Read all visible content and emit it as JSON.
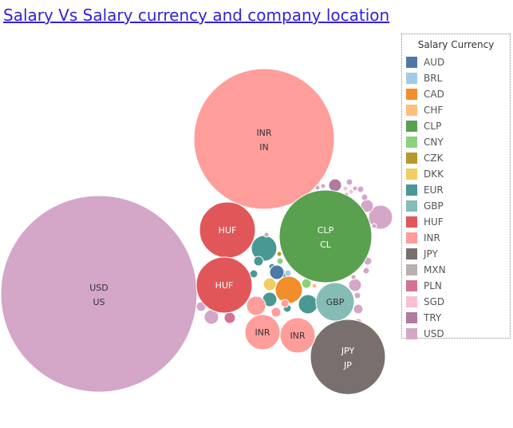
{
  "header": {
    "title": "Salary Vs Salary currency and company location"
  },
  "legend": {
    "title": "Salary Currency",
    "items": [
      {
        "label": "AUD",
        "color": "#4e79a7"
      },
      {
        "label": "BRL",
        "color": "#a0cbe8"
      },
      {
        "label": "CAD",
        "color": "#f28e2b"
      },
      {
        "label": "CHF",
        "color": "#ffbe7d"
      },
      {
        "label": "CLP",
        "color": "#59a14f"
      },
      {
        "label": "CNY",
        "color": "#8cd17d"
      },
      {
        "label": "CZK",
        "color": "#b6992d"
      },
      {
        "label": "DKK",
        "color": "#f1ce63"
      },
      {
        "label": "EUR",
        "color": "#499894"
      },
      {
        "label": "GBP",
        "color": "#86bcb6"
      },
      {
        "label": "HUF",
        "color": "#e15759"
      },
      {
        "label": "INR",
        "color": "#ff9d9a"
      },
      {
        "label": "JPY",
        "color": "#79706e"
      },
      {
        "label": "MXN",
        "color": "#bab0ac"
      },
      {
        "label": "PLN",
        "color": "#d37295"
      },
      {
        "label": "SGD",
        "color": "#fabfd2"
      },
      {
        "label": "TRY",
        "color": "#b07aa1"
      },
      {
        "label": "USD",
        "color": "#d4a6c8"
      }
    ]
  },
  "chart_data": {
    "type": "bubble",
    "title": "Salary Vs Salary currency and company location",
    "color_by": "Salary Currency",
    "labeled_bubbles": [
      {
        "currency": "USD",
        "location": "US"
      },
      {
        "currency": "INR",
        "location": "IN"
      },
      {
        "currency": "CLP",
        "location": "CL"
      },
      {
        "currency": "JPY",
        "location": "JP"
      },
      {
        "currency": "HUF",
        "location": ""
      },
      {
        "currency": "HUF",
        "location": ""
      },
      {
        "currency": "GBP",
        "location": ""
      },
      {
        "currency": "INR",
        "location": ""
      },
      {
        "currency": "INR",
        "location": ""
      }
    ],
    "unlabeled_bubbles": [
      {
        "currency": "EUR"
      },
      {
        "currency": "EUR"
      },
      {
        "currency": "EUR"
      },
      {
        "currency": "EUR"
      },
      {
        "currency": "EUR"
      },
      {
        "currency": "EUR"
      },
      {
        "currency": "EUR"
      },
      {
        "currency": "EUR"
      },
      {
        "currency": "EUR"
      },
      {
        "currency": "EUR"
      },
      {
        "currency": "CAD"
      },
      {
        "currency": "AUD"
      },
      {
        "currency": "DKK"
      },
      {
        "currency": "CNY"
      },
      {
        "currency": "CNY"
      },
      {
        "currency": "CZK"
      },
      {
        "currency": "BRL"
      },
      {
        "currency": "CHF"
      },
      {
        "currency": "MXN"
      },
      {
        "currency": "PLN"
      },
      {
        "currency": "TRY"
      },
      {
        "currency": "INR"
      },
      {
        "currency": "INR"
      },
      {
        "currency": "INR"
      },
      {
        "currency": "USD"
      },
      {
        "currency": "USD"
      },
      {
        "currency": "USD"
      },
      {
        "currency": "USD"
      },
      {
        "currency": "USD"
      },
      {
        "currency": "USD"
      },
      {
        "currency": "USD"
      },
      {
        "currency": "USD"
      },
      {
        "currency": "USD"
      },
      {
        "currency": "USD"
      },
      {
        "currency": "USD"
      },
      {
        "currency": "USD"
      },
      {
        "currency": "USD"
      },
      {
        "currency": "USD"
      },
      {
        "currency": "USD"
      },
      {
        "currency": "USD"
      },
      {
        "currency": "USD"
      },
      {
        "currency": "USD"
      },
      {
        "currency": "USD"
      },
      {
        "currency": "USD"
      },
      {
        "currency": "USD"
      },
      {
        "currency": "USD"
      },
      {
        "currency": "SGD"
      },
      {
        "currency": "SGD"
      }
    ]
  }
}
